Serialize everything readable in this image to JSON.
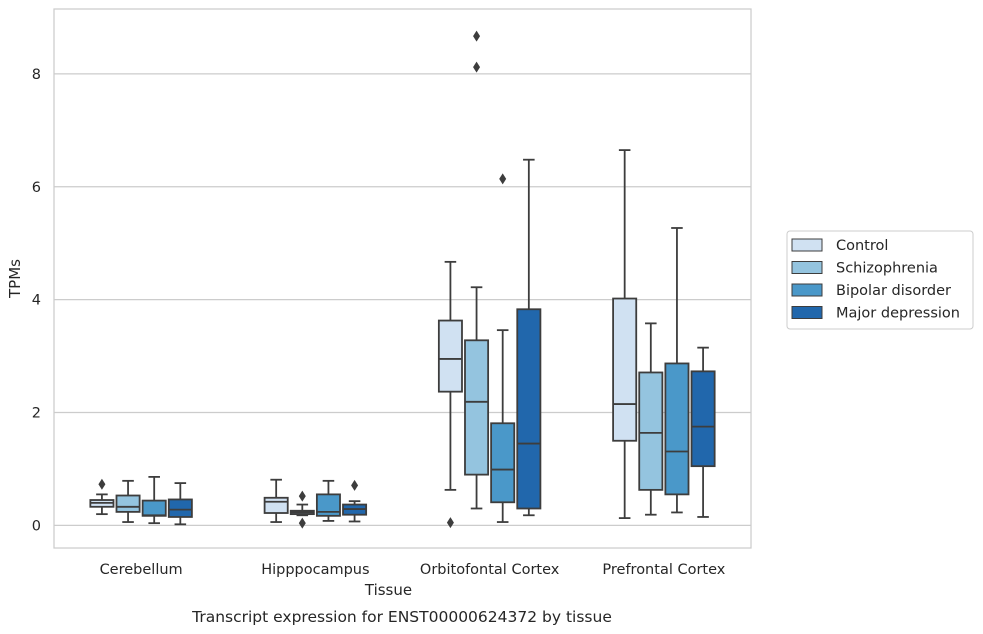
{
  "chart_data": {
    "type": "box",
    "xlabel": "Tissue",
    "ylabel": "TPMs",
    "caption": "Transcript expression for ENST00000624372 by tissue",
    "ylim": [
      -0.4,
      9.15
    ],
    "yticks": [
      0,
      2,
      4,
      6,
      8
    ],
    "grid": "horizontal",
    "legend_position": "right",
    "categories": [
      "Cerebellum",
      "Hipppocampus",
      "Orbitofontal Cortex",
      "Prefrontal Cortex"
    ],
    "series": [
      {
        "name": "Control",
        "color": "#d0e1f2",
        "boxes": [
          {
            "whislo": 0.2,
            "q1": 0.33,
            "med": 0.4,
            "q3": 0.45,
            "whishi": 0.55,
            "fliers": [
              0.73
            ]
          },
          {
            "whislo": 0.06,
            "q1": 0.22,
            "med": 0.42,
            "q3": 0.49,
            "whishi": 0.81,
            "fliers": []
          },
          {
            "whislo": 0.63,
            "q1": 2.37,
            "med": 2.95,
            "q3": 3.63,
            "whishi": 4.67,
            "fliers": [
              0.05
            ]
          },
          {
            "whislo": 0.13,
            "q1": 1.5,
            "med": 2.15,
            "q3": 4.02,
            "whishi": 6.65,
            "fliers": []
          }
        ]
      },
      {
        "name": "Schizophrenia",
        "color": "#94c4df",
        "boxes": [
          {
            "whislo": 0.06,
            "q1": 0.24,
            "med": 0.33,
            "q3": 0.53,
            "whishi": 0.79,
            "fliers": []
          },
          {
            "whislo": 0.18,
            "q1": 0.2,
            "med": 0.23,
            "q3": 0.26,
            "whishi": 0.37,
            "fliers": [
              0.52,
              0.04
            ]
          },
          {
            "whislo": 0.3,
            "q1": 0.9,
            "med": 2.19,
            "q3": 3.28,
            "whishi": 4.22,
            "fliers": [
              8.12,
              8.67
            ]
          },
          {
            "whislo": 0.19,
            "q1": 0.63,
            "med": 1.64,
            "q3": 2.71,
            "whishi": 3.58,
            "fliers": []
          }
        ]
      },
      {
        "name": "Bipolar disorder",
        "color": "#4a98c9",
        "boxes": [
          {
            "whislo": 0.04,
            "q1": 0.17,
            "med": 0.18,
            "q3": 0.44,
            "whishi": 0.86,
            "fliers": []
          },
          {
            "whislo": 0.08,
            "q1": 0.17,
            "med": 0.24,
            "q3": 0.55,
            "whishi": 0.79,
            "fliers": []
          },
          {
            "whislo": 0.06,
            "q1": 0.41,
            "med": 0.99,
            "q3": 1.81,
            "whishi": 3.46,
            "fliers": [
              6.14
            ]
          },
          {
            "whislo": 0.23,
            "q1": 0.55,
            "med": 1.31,
            "q3": 2.87,
            "whishi": 5.27,
            "fliers": []
          }
        ]
      },
      {
        "name": "Major depression",
        "color": "#2167ac",
        "boxes": [
          {
            "whislo": 0.02,
            "q1": 0.15,
            "med": 0.28,
            "q3": 0.46,
            "whishi": 0.75,
            "fliers": []
          },
          {
            "whislo": 0.07,
            "q1": 0.19,
            "med": 0.29,
            "q3": 0.37,
            "whishi": 0.43,
            "fliers": [
              0.71
            ]
          },
          {
            "whislo": 0.18,
            "q1": 0.3,
            "med": 1.45,
            "q3": 3.83,
            "whishi": 6.48,
            "fliers": []
          },
          {
            "whislo": 0.15,
            "q1": 1.05,
            "med": 1.75,
            "q3": 2.73,
            "whishi": 3.15,
            "fliers": []
          }
        ]
      }
    ]
  }
}
